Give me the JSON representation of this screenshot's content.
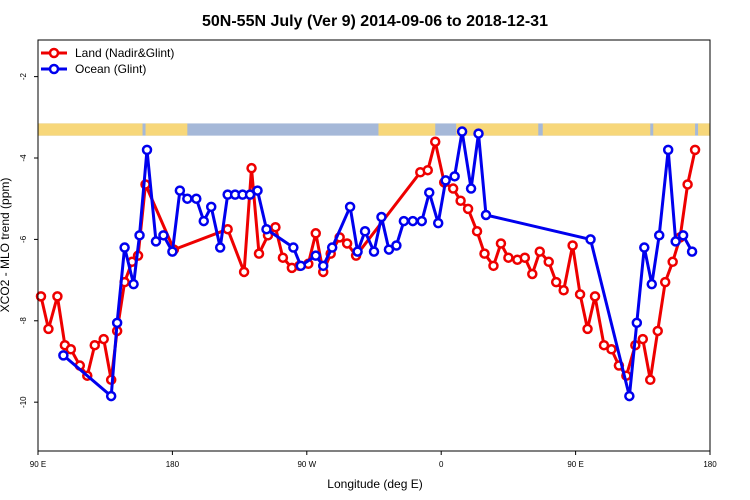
{
  "chart_data": {
    "type": "line",
    "title": "50N-55N July (Ver 9)   2014-09-06 to 2018-12-31",
    "xlabel": "Longitude (deg E)",
    "ylabel": "XCO2 - MLO trend (ppm)",
    "x_ticks": [
      {
        "value": 90,
        "label": "90 E"
      },
      {
        "value": 180,
        "label": "180"
      },
      {
        "value": 270,
        "label": "90 W"
      },
      {
        "value": 360,
        "label": "0"
      },
      {
        "value": 450,
        "label": "90 E"
      },
      {
        "value": 540,
        "label": "180"
      }
    ],
    "y_ticks": [
      -10,
      -8,
      -6,
      -4,
      -2
    ],
    "xlim": [
      90,
      540
    ],
    "ylim": [
      -11.2,
      -1.1
    ],
    "grid": false,
    "legend_position": "top-left",
    "land_strip": {
      "y_range": [
        -3.15,
        -3.45
      ],
      "land_color": "#f7d77a",
      "ocean_color": "#a5b8d8",
      "land_segments": [
        [
          90,
          160
        ],
        [
          162,
          190
        ],
        [
          318,
          356
        ],
        [
          370,
          425
        ],
        [
          428,
          500
        ],
        [
          502,
          530
        ],
        [
          532,
          540
        ]
      ]
    },
    "series": [
      {
        "name": "Land (Nadir&Glint)",
        "color": "#ee0000",
        "points": [
          [
            92,
            -7.4
          ],
          [
            97,
            -8.2
          ],
          [
            103,
            -7.4
          ],
          [
            108,
            -8.6
          ],
          [
            112,
            -8.7
          ],
          [
            118,
            -9.1
          ],
          [
            123,
            -9.35
          ],
          [
            128,
            -8.6
          ],
          [
            134,
            -8.45
          ],
          [
            139,
            -9.45
          ],
          [
            143,
            -8.25
          ],
          [
            148,
            -7.05
          ],
          [
            153,
            -6.55
          ],
          [
            157,
            -6.4
          ],
          [
            162,
            -4.65
          ],
          [
            181,
            -6.25
          ],
          [
            217,
            -5.75
          ],
          [
            228,
            -6.8
          ],
          [
            233,
            -4.25
          ],
          [
            238,
            -6.35
          ],
          [
            244,
            -5.9
          ],
          [
            249,
            -5.7
          ],
          [
            254,
            -6.45
          ],
          [
            260,
            -6.7
          ],
          [
            265,
            -6.65
          ],
          [
            271,
            -6.6
          ],
          [
            276,
            -5.85
          ],
          [
            281,
            -6.8
          ],
          [
            286,
            -6.35
          ],
          [
            292,
            -5.95
          ],
          [
            297,
            -6.1
          ],
          [
            303,
            -6.4
          ],
          [
            346,
            -4.35
          ],
          [
            351,
            -4.3
          ],
          [
            356,
            -3.6
          ],
          [
            362,
            -4.6
          ],
          [
            368,
            -4.75
          ],
          [
            373,
            -5.05
          ],
          [
            378,
            -5.25
          ],
          [
            384,
            -5.8
          ],
          [
            389,
            -6.35
          ],
          [
            395,
            -6.65
          ],
          [
            400,
            -6.1
          ],
          [
            405,
            -6.45
          ],
          [
            411,
            -6.5
          ],
          [
            416,
            -6.45
          ],
          [
            421,
            -6.85
          ],
          [
            426,
            -6.3
          ],
          [
            432,
            -6.55
          ],
          [
            437,
            -7.05
          ],
          [
            442,
            -7.25
          ],
          [
            448,
            -6.15
          ],
          [
            453,
            -7.35
          ],
          [
            458,
            -8.2
          ],
          [
            463,
            -7.4
          ],
          [
            469,
            -8.6
          ],
          [
            474,
            -8.7
          ],
          [
            479,
            -9.1
          ],
          [
            484,
            -9.35
          ],
          [
            490,
            -8.6
          ],
          [
            495,
            -8.45
          ],
          [
            500,
            -9.45
          ],
          [
            505,
            -8.25
          ],
          [
            510,
            -7.05
          ],
          [
            515,
            -6.55
          ],
          [
            520,
            -5.95
          ],
          [
            525,
            -4.65
          ],
          [
            530,
            -3.8
          ]
        ]
      },
      {
        "name": "Ocean (Glint)",
        "color": "#0000ee",
        "points": [
          [
            107,
            -8.85
          ],
          [
            139,
            -9.85
          ],
          [
            143,
            -8.05
          ],
          [
            148,
            -6.2
          ],
          [
            154,
            -7.1
          ],
          [
            158,
            -5.9
          ],
          [
            163,
            -3.8
          ],
          [
            169,
            -6.05
          ],
          [
            174,
            -5.9
          ],
          [
            180,
            -6.3
          ],
          [
            185,
            -4.8
          ],
          [
            190,
            -5.0
          ],
          [
            196,
            -5.0
          ],
          [
            201,
            -5.55
          ],
          [
            206,
            -5.2
          ],
          [
            212,
            -6.2
          ],
          [
            217,
            -4.9
          ],
          [
            222,
            -4.9
          ],
          [
            227,
            -4.9
          ],
          [
            232,
            -4.9
          ],
          [
            237,
            -4.8
          ],
          [
            243,
            -5.75
          ],
          [
            261,
            -6.2
          ],
          [
            266,
            -6.65
          ],
          [
            276,
            -6.4
          ],
          [
            281,
            -6.65
          ],
          [
            287,
            -6.2
          ],
          [
            299,
            -5.2
          ],
          [
            304,
            -6.3
          ],
          [
            309,
            -5.8
          ],
          [
            315,
            -6.3
          ],
          [
            320,
            -5.45
          ],
          [
            325,
            -6.25
          ],
          [
            330,
            -6.15
          ],
          [
            335,
            -5.55
          ],
          [
            341,
            -5.55
          ],
          [
            347,
            -5.55
          ],
          [
            352,
            -4.85
          ],
          [
            358,
            -5.6
          ],
          [
            363,
            -4.55
          ],
          [
            369,
            -4.45
          ],
          [
            374,
            -3.35
          ],
          [
            380,
            -4.75
          ],
          [
            385,
            -3.4
          ],
          [
            390,
            -5.4
          ],
          [
            460,
            -6.0
          ],
          [
            486,
            -9.85
          ],
          [
            491,
            -8.05
          ],
          [
            496,
            -6.2
          ],
          [
            501,
            -7.1
          ],
          [
            506,
            -5.9
          ],
          [
            512,
            -3.8
          ],
          [
            517,
            -6.05
          ],
          [
            522,
            -5.9
          ],
          [
            528,
            -6.3
          ]
        ]
      }
    ]
  }
}
